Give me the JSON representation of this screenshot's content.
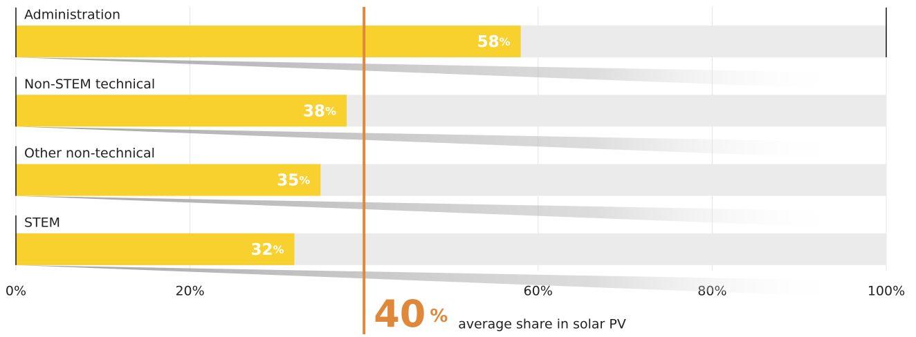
{
  "chart_data": {
    "type": "bar",
    "orientation": "horizontal",
    "categories": [
      "Administration",
      "Non-STEM technical",
      "Other non-technical",
      "STEM"
    ],
    "values": [
      58,
      38,
      35,
      32
    ],
    "value_labels": [
      "58%",
      "38%",
      "35%",
      "32%"
    ],
    "color": "#f9d12e",
    "background_color": "#ebebeb",
    "xlim": [
      0,
      100
    ],
    "xticks": [
      {
        "value": 0,
        "label": "0%"
      },
      {
        "value": 20,
        "label": "20%"
      },
      {
        "value": 60,
        "label": "60%"
      },
      {
        "value": 80,
        "label": "80%"
      },
      {
        "value": 100,
        "label": "100%"
      }
    ],
    "grid": true,
    "average": {
      "value": 40,
      "label": "40%",
      "text": "average share in solar PV",
      "color": "#e0883a"
    }
  }
}
